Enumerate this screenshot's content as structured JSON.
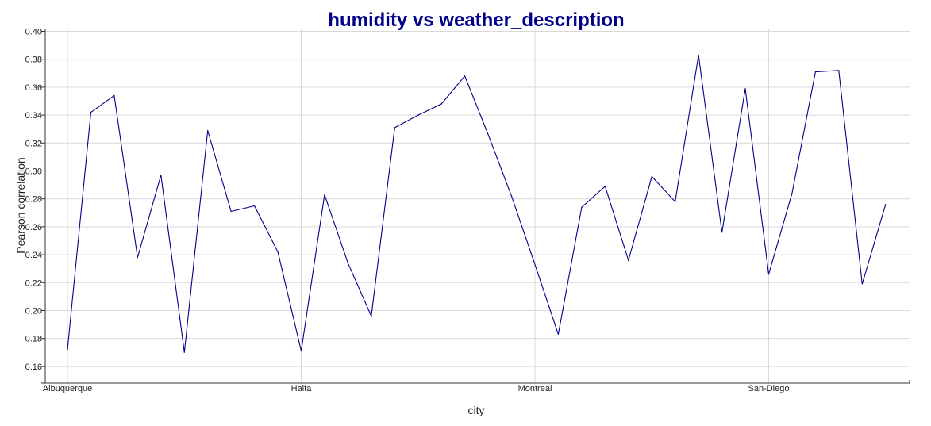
{
  "chart_data": {
    "type": "line",
    "title": "humidity vs weather_description",
    "xlabel": "city",
    "ylabel": "Pearson correlation",
    "ylim": [
      0.148,
      0.402
    ],
    "yticks": [
      0.16,
      0.18,
      0.2,
      0.22,
      0.24,
      0.26,
      0.28,
      0.3,
      0.32,
      0.34,
      0.36,
      0.38,
      0.4
    ],
    "ytick_labels": [
      "0.16",
      "0.18",
      "0.20",
      "0.22",
      "0.24",
      "0.26",
      "0.28",
      "0.30",
      "0.32",
      "0.34",
      "0.36",
      "0.38",
      "0.40"
    ],
    "xtick_labels": [
      {
        "index": 0,
        "label": "Albuquerque"
      },
      {
        "index": 10,
        "label": "Haifa"
      },
      {
        "index": 20,
        "label": "Montreal"
      },
      {
        "index": 30,
        "label": "San-Diego"
      }
    ],
    "grid": true,
    "line_color": "#00008b",
    "series": [
      {
        "values": [
          0.172,
          0.342,
          0.354,
          0.238,
          0.297,
          0.17,
          0.329,
          0.271,
          0.275,
          0.242,
          0.171,
          0.283,
          0.234,
          0.196,
          0.331,
          0.34,
          0.348,
          0.368,
          0.326,
          0.282,
          0.233,
          0.183,
          0.274,
          0.289,
          0.236,
          0.296,
          0.278,
          0.383,
          0.256,
          0.359,
          0.226,
          0.284,
          0.371,
          0.372,
          0.219,
          0.276
        ]
      }
    ]
  }
}
